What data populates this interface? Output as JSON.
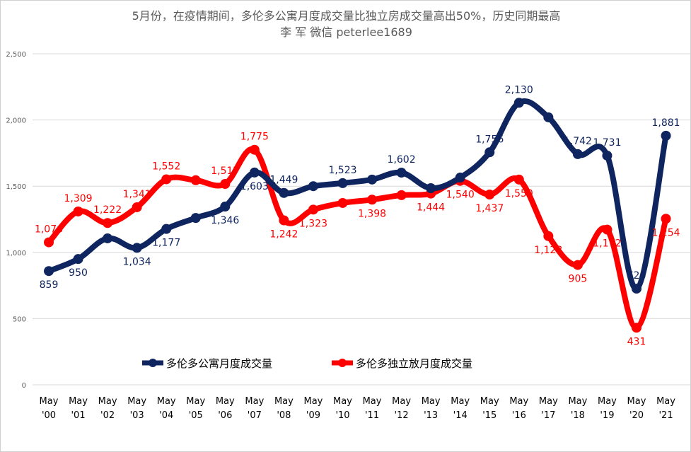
{
  "chart_data": {
    "type": "line",
    "title": "5月份，在疫情期间，多伦多公寓月度成交量比独立房成交量高出50%，历史同期最高",
    "subtitle": "李 军  微信 peterlee1689",
    "xlabel": "",
    "ylabel": "",
    "ylim": [
      0,
      2500
    ],
    "yticks": [
      "0",
      "500",
      "1,000",
      "1,500",
      "2,000",
      "2,500"
    ],
    "categories": [
      [
        "May",
        "'00"
      ],
      [
        "May",
        "'01"
      ],
      [
        "May",
        "'02"
      ],
      [
        "May",
        "'03"
      ],
      [
        "May",
        "'04"
      ],
      [
        "May",
        "'05"
      ],
      [
        "May",
        "'06"
      ],
      [
        "May",
        "'07"
      ],
      [
        "May",
        "'08"
      ],
      [
        "May",
        "'09"
      ],
      [
        "May",
        "'10"
      ],
      [
        "May",
        "'11"
      ],
      [
        "May",
        "'12"
      ],
      [
        "May",
        "'13"
      ],
      [
        "May",
        "'14"
      ],
      [
        "May",
        "'15"
      ],
      [
        "May",
        "'16"
      ],
      [
        "May",
        "'17"
      ],
      [
        "May",
        "'18"
      ],
      [
        "May",
        "'19"
      ],
      [
        "May",
        "'20"
      ],
      [
        "May",
        "'21"
      ]
    ],
    "grid": true,
    "legend": "bottom-center",
    "series": [
      {
        "name": "多伦多公寓月度成交量",
        "color": "#0f2560",
        "values": [
          859,
          950,
          1106,
          1034,
          1177,
          1260,
          1346,
          1603,
          1449,
          1500,
          1523,
          1550,
          1602,
          1485,
          1565,
          1756,
          2130,
          2020,
          1742,
          1731,
          726,
          1881
        ],
        "labels": [
          "859",
          "950",
          "",
          "1,034",
          "1,177",
          "",
          "1,346",
          "1,603",
          "1,449",
          "",
          "1,523",
          "",
          "1,602",
          "",
          "",
          "1,756",
          "2,130",
          "",
          "1,742",
          "1,731",
          "726",
          "1,881"
        ]
      },
      {
        "name": "多伦多独立放月度成交量",
        "color": "#ff0000",
        "values": [
          1076,
          1309,
          1222,
          1341,
          1552,
          1545,
          1517,
          1775,
          1242,
          1323,
          1373,
          1398,
          1432,
          1444,
          1540,
          1437,
          1550,
          1123,
          905,
          1172,
          431,
          1254
        ],
        "labels": [
          "1,076",
          "1,309",
          "1,222",
          "1,341",
          "1,552",
          "",
          "1,517",
          "1,775",
          "1,242",
          "1,323",
          "",
          "1,398",
          "",
          "1,444",
          "1,540",
          "1,437",
          "1,550",
          "1,123",
          "905",
          "1,172",
          "431",
          "1,254"
        ]
      }
    ]
  }
}
